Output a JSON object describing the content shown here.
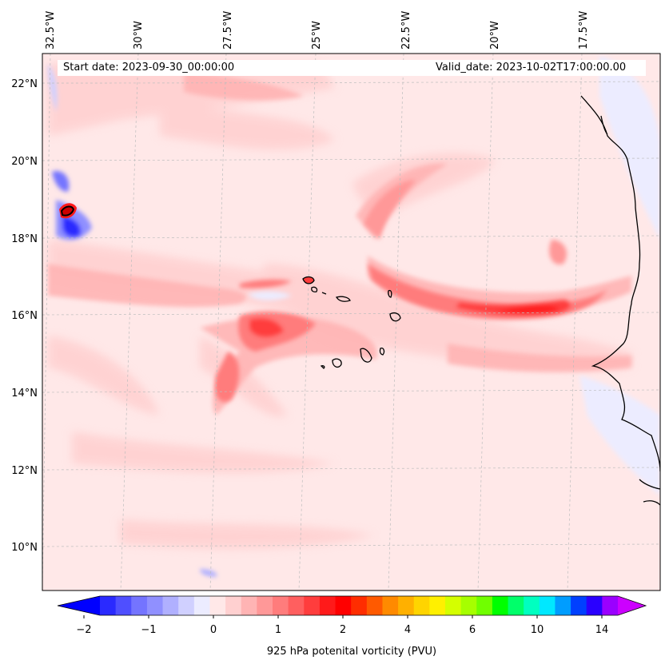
{
  "map": {
    "start_date": "Start date: 2023-09-30_00:00:00",
    "valid_date": "Valid_date: 2023-10-02T17:00:00.00",
    "lon_labels": [
      "32.5°W",
      "30°W",
      "27.5°W",
      "25°W",
      "22.5°W",
      "20°W",
      "17.5°W"
    ],
    "lat_labels": [
      "22°N",
      "20°N",
      "18°N",
      "16°N",
      "14°N",
      "12°N",
      "10°N"
    ]
  },
  "colorbar": {
    "label": "925 hPa potenital vorticity (PVU)",
    "tick_labels": [
      "−2",
      "−1",
      "0",
      "1",
      "2",
      "4",
      "6",
      "10",
      "14"
    ],
    "colors": [
      "#0000ff",
      "#2a2aff",
      "#4f4fff",
      "#7474ff",
      "#9090ff",
      "#b0b0ff",
      "#d0d0ff",
      "#ececff",
      "#ffe8e8",
      "#ffd0d0",
      "#ffb4b4",
      "#ff9898",
      "#ff7c7c",
      "#ff5f5f",
      "#ff3d3d",
      "#ff1a1a",
      "#ff0000",
      "#ff2d00",
      "#ff5a00",
      "#ff8a00",
      "#ffb000",
      "#ffd400",
      "#fff000",
      "#d4ff00",
      "#a6ff00",
      "#70ff00",
      "#00ff00",
      "#00ff6a",
      "#00ffc0",
      "#00e8ff",
      "#009dff",
      "#0040ff",
      "#2a00ff",
      "#9a00ff",
      "#cc00ff"
    ]
  }
}
